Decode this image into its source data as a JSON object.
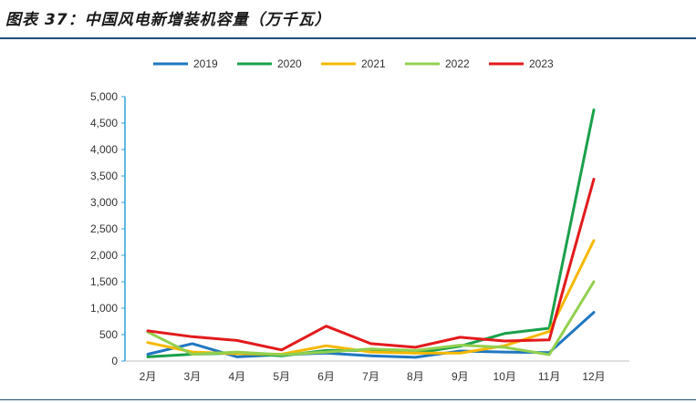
{
  "header": {
    "title": "图表 37：中国风电新增装机容量（万千瓦）"
  },
  "chart_data": {
    "type": "line",
    "title": "中国风电新增装机容量（万千瓦）",
    "categories": [
      "2月",
      "3月",
      "4月",
      "5月",
      "6月",
      "7月",
      "8月",
      "9月",
      "10月",
      "11月",
      "12月"
    ],
    "ylim": [
      0,
      5000
    ],
    "yticks": [
      0,
      500,
      1000,
      1500,
      2000,
      2500,
      3000,
      3500,
      4000,
      4500,
      5000
    ],
    "ytick_labels": [
      "0",
      "500",
      "1,000",
      "1,500",
      "2,000",
      "2,500",
      "3,000",
      "3,500",
      "4,000",
      "4,500",
      "5,000"
    ],
    "grid": false,
    "legend_position": "top",
    "series": [
      {
        "name": "2019",
        "color": "#1f77c0",
        "values": [
          130,
          330,
          80,
          120,
          150,
          100,
          70,
          190,
          170,
          160,
          920
        ]
      },
      {
        "name": "2020",
        "color": "#1aa04a",
        "values": [
          80,
          130,
          150,
          100,
          200,
          200,
          150,
          280,
          520,
          620,
          4750
        ]
      },
      {
        "name": "2021",
        "color": "#f5b800",
        "values": [
          350,
          170,
          140,
          130,
          290,
          170,
          150,
          150,
          290,
          560,
          2280
        ]
      },
      {
        "name": "2022",
        "color": "#92d050",
        "values": [
          550,
          130,
          170,
          120,
          170,
          230,
          200,
          300,
          260,
          120,
          1500
        ]
      },
      {
        "name": "2023",
        "color": "#e31a1c",
        "values": [
          570,
          460,
          390,
          210,
          660,
          330,
          260,
          450,
          380,
          400,
          3440
        ]
      }
    ]
  }
}
